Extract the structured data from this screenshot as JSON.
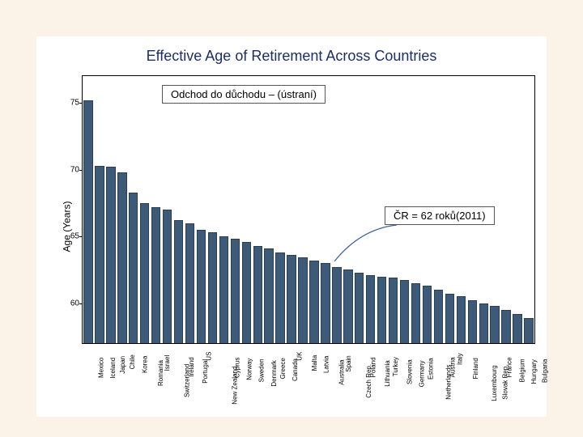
{
  "chart": {
    "type": "bar",
    "title": "Effective Age of Retirement Across Countries",
    "title_color": "#1d2e67",
    "title_fontsize": 18,
    "ylabel": "Age (Years)",
    "label_fontsize": 12,
    "ylim": [
      57,
      77
    ],
    "yticks": [
      60,
      65,
      70,
      75
    ],
    "bar_color": "#3d5a78",
    "bar_border": "#2b3f54",
    "background_color": "#ffffff",
    "page_background": "#fbf3e8",
    "bar_width": 0.82,
    "categories": [
      "Mexico",
      "Iceland",
      "Japan",
      "Chile",
      "Korea",
      "Romania",
      "Israel",
      "Switzerland",
      "Ireland",
      "Portugal",
      "US",
      "New Zealand",
      "Cyprus",
      "Norway",
      "Sweden",
      "Denmark",
      "Greece",
      "Canada",
      "UK",
      "Malta",
      "Latvia",
      "Australia",
      "Spain",
      "Czech Rep.",
      "Poland",
      "Lithuania",
      "Turkey",
      "Slovenia",
      "Germany",
      "Estonia",
      "Netherlands",
      "Austria",
      "Italy",
      "Finland",
      "Luxembourg",
      "Slovak Rep.",
      "France",
      "Belgium",
      "Hungary",
      "Bulgaria"
    ],
    "values": [
      75.2,
      70.3,
      70.2,
      69.8,
      68.3,
      67.5,
      67.2,
      67.0,
      66.2,
      66.0,
      65.5,
      65.3,
      65.0,
      64.8,
      64.6,
      64.3,
      64.1,
      63.8,
      63.6,
      63.4,
      63.2,
      63.0,
      62.7,
      62.5,
      62.3,
      62.1,
      62.0,
      61.9,
      61.7,
      61.5,
      61.3,
      61.0,
      60.7,
      60.5,
      60.2,
      60.0,
      59.8,
      59.5,
      59.2,
      58.9
    ]
  },
  "annotations": {
    "top_box": "Odchod do důchodu – (ústraní)",
    "cr_box": "ČR = 62 roků(2011)"
  }
}
